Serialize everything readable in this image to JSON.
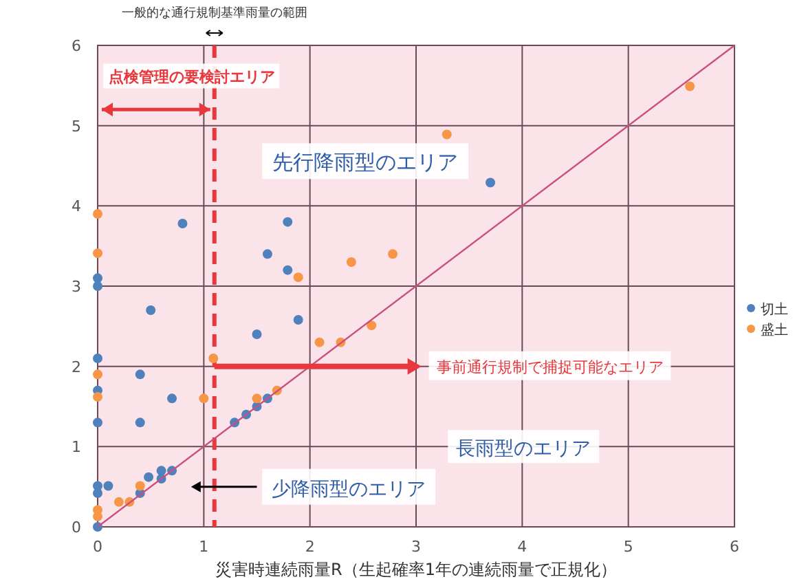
{
  "chart_data": {
    "type": "scatter",
    "xlabel": "災害時連続雨量R（生起確率1年の連続雨量で正規化）",
    "xlim": [
      0,
      6
    ],
    "ylim": [
      0,
      6
    ],
    "xticks": [
      0,
      1,
      2,
      3,
      4,
      5,
      6
    ],
    "yticks": [
      0,
      1,
      2,
      3,
      4,
      5,
      6
    ],
    "grid": true,
    "legend": "right",
    "marker": "circle",
    "series": [
      {
        "name": "切土",
        "color": "#4f81bd",
        "x": [
          0.8,
          1.79,
          1.6,
          1.79,
          0,
          0,
          3.7,
          0.5,
          1.89,
          1.5,
          0,
          0.4,
          0,
          0.7,
          0,
          0.4,
          1.29,
          1.4,
          1.5,
          1.6,
          0,
          0,
          0.1,
          0.48,
          0.6,
          0.7,
          0.6,
          0.4,
          0
        ],
        "values": [
          3.78,
          3.8,
          3.4,
          3.2,
          3.1,
          3.0,
          4.29,
          2.7,
          2.58,
          2.4,
          2.1,
          1.9,
          1.7,
          1.6,
          1.3,
          1.3,
          1.3,
          1.4,
          1.5,
          1.6,
          0.51,
          0.42,
          0.51,
          0.62,
          0.7,
          0.7,
          0.6,
          0.42,
          0
        ]
      },
      {
        "name": "盛土",
        "color": "#f79646",
        "x": [
          0,
          0,
          1.89,
          2.39,
          2.78,
          5.58,
          3.29,
          2.09,
          2.29,
          2.58,
          1.09,
          0,
          0,
          1.0,
          1.5,
          1.69,
          0.4,
          0.2,
          0.3,
          0,
          0
        ],
        "values": [
          3.9,
          3.41,
          3.11,
          3.3,
          3.4,
          5.49,
          4.89,
          2.3,
          2.3,
          2.51,
          2.1,
          1.9,
          1.62,
          1.6,
          1.6,
          1.7,
          0.51,
          0.31,
          0.31,
          0.21,
          0.13
        ]
      },
      {
        "type": "line",
        "marker": "none",
        "color": "#c8507e",
        "x": [
          0,
          6
        ],
        "values": [
          0,
          6
        ]
      }
    ],
    "ref_lines": [
      {
        "axis": "x",
        "value": 1.1,
        "label": "一般的な通行規制基準雨量の範囲",
        "color": "#e8383d",
        "line_style": "dashed"
      }
    ],
    "annotations": [
      "点検管理の要検討エリア",
      "先行降雨型のエリア",
      "事前通行規制で捕捉可能なエリア",
      "長雨型のエリア",
      "少降雨型のエリア"
    ]
  }
}
